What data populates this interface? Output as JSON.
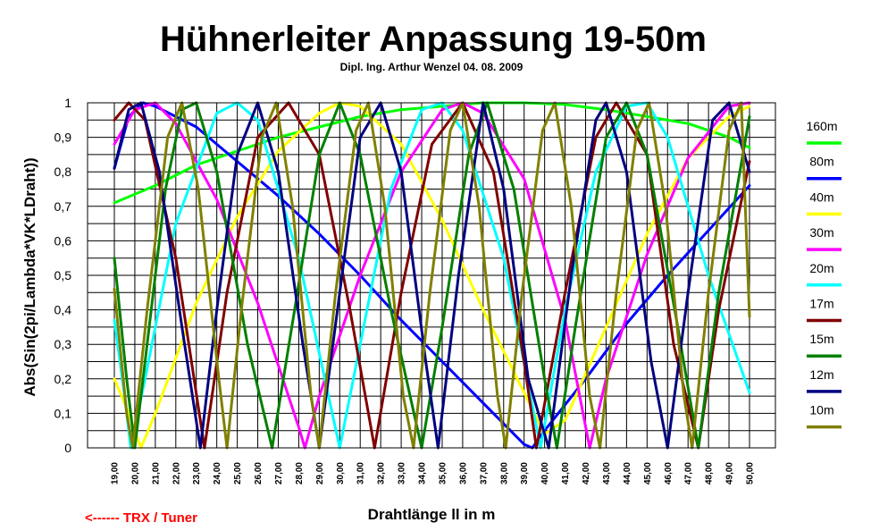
{
  "chart_data": {
    "type": "line",
    "title": "Hühnerleiter Anpassung 19-50m",
    "subtitle": "Dipl. Ing. Arthur Wenzel  04. 08. 2009",
    "xlabel": "Drahtlänge ll in m",
    "ylabel": "Abs(Sin(2pi/Lambda*VK*LDraht))",
    "annotation": "<------  TRX / Tuner",
    "xlim": [
      19,
      50
    ],
    "ylim": [
      0,
      1
    ],
    "x_ticks": [
      "19,00",
      "20,00",
      "21,00",
      "22,00",
      "23,00",
      "24,00",
      "25,00",
      "26,00",
      "27,00",
      "28,00",
      "29,00",
      "30,00",
      "31,00",
      "32,00",
      "33,00",
      "34,00",
      "35,00",
      "36,00",
      "37,00",
      "38,00",
      "39,00",
      "40,00",
      "41,00",
      "42,00",
      "43,00",
      "44,00",
      "45,00",
      "46,00",
      "47,00",
      "48,00",
      "49,00",
      "50,00"
    ],
    "y_ticks": [
      "0",
      "0,1",
      "0,2",
      "0,3",
      "0,4",
      "0,5",
      "0,6",
      "0,7",
      "0,8",
      "0,9",
      "1"
    ],
    "grid": true,
    "legend_placement": "right",
    "series": [
      {
        "name": "160m",
        "color": "#00ff00",
        "points": [
          [
            19,
            0.71
          ],
          [
            21,
            0.76
          ],
          [
            23,
            0.82
          ],
          [
            25,
            0.86
          ],
          [
            27,
            0.9
          ],
          [
            29,
            0.93
          ],
          [
            31,
            0.96
          ],
          [
            33,
            0.98
          ],
          [
            35,
            0.99
          ],
          [
            37,
            1.0
          ],
          [
            39,
            1.0
          ],
          [
            41,
            0.995
          ],
          [
            43,
            0.98
          ],
          [
            45,
            0.96
          ],
          [
            47,
            0.94
          ],
          [
            49,
            0.9
          ],
          [
            50,
            0.87
          ]
        ]
      },
      {
        "name": "80m",
        "color": "#0000ff",
        "points": [
          [
            19,
            0.81
          ],
          [
            19.7,
            0.96
          ],
          [
            20.4,
            1.0
          ],
          [
            21,
            0.99
          ],
          [
            23,
            0.93
          ],
          [
            25,
            0.83
          ],
          [
            27,
            0.73
          ],
          [
            29,
            0.62
          ],
          [
            31,
            0.5
          ],
          [
            33,
            0.37
          ],
          [
            35,
            0.25
          ],
          [
            37,
            0.13
          ],
          [
            39,
            0.01
          ],
          [
            39.4,
            0.0
          ],
          [
            40,
            0.05
          ],
          [
            42,
            0.2
          ],
          [
            44,
            0.36
          ],
          [
            46,
            0.5
          ],
          [
            48,
            0.63
          ],
          [
            50,
            0.76
          ]
        ]
      },
      {
        "name": "40m",
        "color": "#ffff00",
        "points": [
          [
            19,
            0.2
          ],
          [
            19.7,
            0.1
          ],
          [
            20.3,
            0.0
          ],
          [
            21,
            0.1
          ],
          [
            23,
            0.42
          ],
          [
            25,
            0.67
          ],
          [
            27,
            0.86
          ],
          [
            29,
            0.97
          ],
          [
            30,
            1.0
          ],
          [
            31,
            0.99
          ],
          [
            33,
            0.88
          ],
          [
            35,
            0.66
          ],
          [
            37,
            0.4
          ],
          [
            39,
            0.16
          ],
          [
            40,
            0.04
          ],
          [
            41,
            0.08
          ],
          [
            43,
            0.35
          ],
          [
            45,
            0.62
          ],
          [
            47,
            0.84
          ],
          [
            49,
            0.96
          ],
          [
            50,
            0.99
          ]
        ]
      },
      {
        "name": "30m",
        "color": "#ff00ff",
        "points": [
          [
            19,
            0.88
          ],
          [
            20,
            0.98
          ],
          [
            21,
            1.0
          ],
          [
            22,
            0.94
          ],
          [
            24,
            0.72
          ],
          [
            26,
            0.42
          ],
          [
            28,
            0.06
          ],
          [
            28.3,
            0.0
          ],
          [
            29,
            0.15
          ],
          [
            31,
            0.5
          ],
          [
            33,
            0.8
          ],
          [
            35,
            0.98
          ],
          [
            36,
            1.0
          ],
          [
            37,
            0.97
          ],
          [
            39,
            0.78
          ],
          [
            41,
            0.37
          ],
          [
            42.2,
            0.0
          ],
          [
            43,
            0.2
          ],
          [
            45,
            0.56
          ],
          [
            47,
            0.84
          ],
          [
            49,
            0.99
          ],
          [
            50,
            1.0
          ]
        ]
      },
      {
        "name": "20m",
        "color": "#00ffff",
        "points": [
          [
            19,
            0.37
          ],
          [
            19.5,
            0.15
          ],
          [
            19.8,
            0.0
          ],
          [
            20.5,
            0.2
          ],
          [
            22,
            0.65
          ],
          [
            24,
            0.97
          ],
          [
            25,
            1.0
          ],
          [
            26,
            0.95
          ],
          [
            28,
            0.55
          ],
          [
            30,
            0.0
          ],
          [
            31,
            0.3
          ],
          [
            32.5,
            0.75
          ],
          [
            34,
            0.98
          ],
          [
            35,
            1.0
          ],
          [
            36,
            0.92
          ],
          [
            38,
            0.55
          ],
          [
            39.8,
            0.0
          ],
          [
            41,
            0.4
          ],
          [
            42.5,
            0.8
          ],
          [
            44,
            0.99
          ],
          [
            45,
            1.0
          ],
          [
            46,
            0.9
          ],
          [
            48,
            0.5
          ],
          [
            50,
            0.16
          ]
        ]
      },
      {
        "name": "17m",
        "color": "#800000",
        "points": [
          [
            19,
            0.95
          ],
          [
            19.7,
            1.0
          ],
          [
            20.5,
            0.95
          ],
          [
            22,
            0.55
          ],
          [
            23.4,
            0.0
          ],
          [
            24.5,
            0.45
          ],
          [
            26,
            0.9
          ],
          [
            27.5,
            1.0
          ],
          [
            29,
            0.85
          ],
          [
            30.5,
            0.4
          ],
          [
            31.7,
            0.0
          ],
          [
            33,
            0.45
          ],
          [
            34.5,
            0.88
          ],
          [
            36,
            1.0
          ],
          [
            37.5,
            0.8
          ],
          [
            39,
            0.25
          ],
          [
            39.6,
            0.0
          ],
          [
            41,
            0.45
          ],
          [
            42.5,
            0.9
          ],
          [
            43.5,
            1.0
          ],
          [
            45,
            0.85
          ],
          [
            46.3,
            0.3
          ],
          [
            47.5,
            0.0
          ],
          [
            48.5,
            0.4
          ],
          [
            50,
            0.83
          ]
        ]
      },
      {
        "name": "15m",
        "color": "#008000",
        "points": [
          [
            19,
            0.55
          ],
          [
            19.6,
            0.2
          ],
          [
            20.0,
            0.0
          ],
          [
            20.6,
            0.3
          ],
          [
            21.5,
            0.75
          ],
          [
            22.3,
            0.98
          ],
          [
            23,
            1.0
          ],
          [
            24,
            0.8
          ],
          [
            25.5,
            0.3
          ],
          [
            26.7,
            0.0
          ],
          [
            27.8,
            0.4
          ],
          [
            29,
            0.85
          ],
          [
            30,
            1.0
          ],
          [
            31,
            0.85
          ],
          [
            32.5,
            0.4
          ],
          [
            34,
            0.0
          ],
          [
            35,
            0.35
          ],
          [
            36.3,
            0.85
          ],
          [
            37.2,
            1.0
          ],
          [
            38.5,
            0.75
          ],
          [
            40,
            0.2
          ],
          [
            40.6,
            0.0
          ],
          [
            41.5,
            0.35
          ],
          [
            43,
            0.9
          ],
          [
            44,
            1.0
          ],
          [
            45,
            0.85
          ],
          [
            46.5,
            0.35
          ],
          [
            47.5,
            0.0
          ],
          [
            48.5,
            0.45
          ],
          [
            50,
            0.96
          ]
        ]
      },
      {
        "name": "12m",
        "color": "#000080",
        "points": [
          [
            19,
            0.81
          ],
          [
            19.7,
            0.98
          ],
          [
            20.3,
            1.0
          ],
          [
            21.2,
            0.8
          ],
          [
            22.3,
            0.35
          ],
          [
            23.2,
            0.0
          ],
          [
            24,
            0.4
          ],
          [
            25,
            0.85
          ],
          [
            26,
            1.0
          ],
          [
            27,
            0.8
          ],
          [
            28.2,
            0.3
          ],
          [
            29,
            0.0
          ],
          [
            30,
            0.45
          ],
          [
            31,
            0.9
          ],
          [
            32,
            1.0
          ],
          [
            33,
            0.8
          ],
          [
            34.2,
            0.25
          ],
          [
            34.8,
            0.0
          ],
          [
            35.8,
            0.5
          ],
          [
            37,
            1.0
          ],
          [
            38,
            0.75
          ],
          [
            39.2,
            0.2
          ],
          [
            40.2,
            0.0
          ],
          [
            41.3,
            0.5
          ],
          [
            42.5,
            0.95
          ],
          [
            43,
            1.0
          ],
          [
            44,
            0.8
          ],
          [
            45.2,
            0.25
          ],
          [
            46,
            0.0
          ],
          [
            47,
            0.45
          ],
          [
            48.2,
            0.95
          ],
          [
            49,
            1.0
          ],
          [
            50,
            0.8
          ]
        ]
      },
      {
        "name": "10m",
        "color": "#808000",
        "points": [
          [
            19,
            0.46
          ],
          [
            19.6,
            0.1
          ],
          [
            19.9,
            0.0
          ],
          [
            20.6,
            0.4
          ],
          [
            21.6,
            0.9
          ],
          [
            22.3,
            1.0
          ],
          [
            23.1,
            0.75
          ],
          [
            24.1,
            0.2
          ],
          [
            24.5,
            0.0
          ],
          [
            25.2,
            0.4
          ],
          [
            26.2,
            0.9
          ],
          [
            26.9,
            1.0
          ],
          [
            27.7,
            0.7
          ],
          [
            28.6,
            0.15
          ],
          [
            29.0,
            0.0
          ],
          [
            29.8,
            0.45
          ],
          [
            30.8,
            0.92
          ],
          [
            31.4,
            1.0
          ],
          [
            32.2,
            0.7
          ],
          [
            33.1,
            0.15
          ],
          [
            33.6,
            0.0
          ],
          [
            34.4,
            0.45
          ],
          [
            35.4,
            0.92
          ],
          [
            36.0,
            1.0
          ],
          [
            36.8,
            0.7
          ],
          [
            37.7,
            0.15
          ],
          [
            38.1,
            0.0
          ],
          [
            38.9,
            0.45
          ],
          [
            39.9,
            0.92
          ],
          [
            40.5,
            1.0
          ],
          [
            41.3,
            0.7
          ],
          [
            42.2,
            0.15
          ],
          [
            42.7,
            0.0
          ],
          [
            43.5,
            0.45
          ],
          [
            44.5,
            0.92
          ],
          [
            45.1,
            1.0
          ],
          [
            45.9,
            0.7
          ],
          [
            46.8,
            0.15
          ],
          [
            47.2,
            0.0
          ],
          [
            48.0,
            0.45
          ],
          [
            49.0,
            0.92
          ],
          [
            49.6,
            1.0
          ],
          [
            50,
            0.38
          ]
        ]
      }
    ]
  }
}
